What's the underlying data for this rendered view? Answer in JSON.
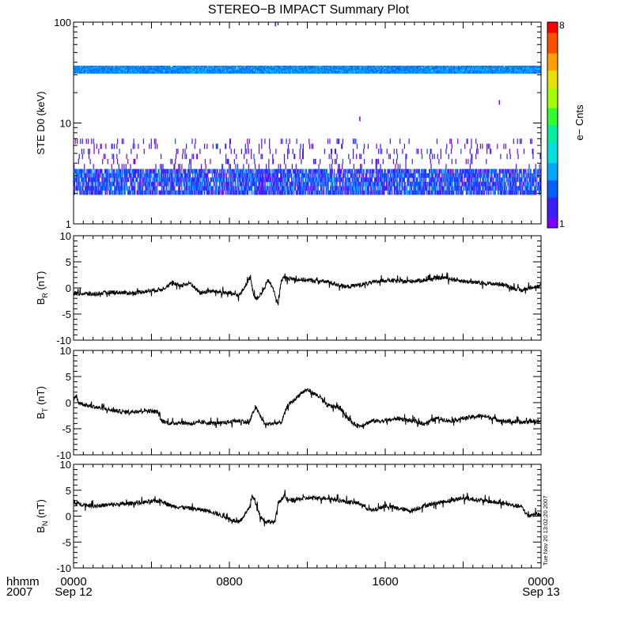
{
  "title": "STEREO−B IMPACT Summary Plot",
  "footer": {
    "label_line1": "hhmm",
    "label_line2": "2007",
    "ticks": [
      {
        "t": 0,
        "line1": "0000",
        "line2": "Sep 12"
      },
      {
        "t": 480,
        "line1": "0800",
        "line2": ""
      },
      {
        "t": 960,
        "line1": "1600",
        "line2": ""
      },
      {
        "t": 1440,
        "line1": "0000",
        "line2": "Sep 13"
      }
    ],
    "timestamp": "Tue Nov 20 13:02:20 2007"
  },
  "colorbar": {
    "label": "e− Cnts",
    "min_label": "1",
    "max_label": "8",
    "colors": [
      "#7f00ff",
      "#3a20ff",
      "#0060ff",
      "#00a8ff",
      "#00e0e0",
      "#00f0a0",
      "#30ff30",
      "#a0ff00",
      "#e8e000",
      "#ffa000",
      "#ff5000",
      "#ff0000"
    ]
  },
  "chart_data": [
    {
      "type": "heatmap",
      "ylabel": "STE D0 (keV)",
      "yscale": "log",
      "ylim": [
        1,
        100
      ],
      "yticks": [
        1,
        10,
        100
      ],
      "xlim": [
        0,
        1440
      ],
      "bands": [
        {
          "ylow": 1.95,
          "yhigh": 3.5,
          "fill": 0.75,
          "level_min": 1,
          "level_max": 3
        },
        {
          "ylow": 3.5,
          "yhigh": 7.0,
          "fill": 0.08,
          "level_min": 1,
          "level_max": 2
        },
        {
          "ylow": 31.0,
          "yhigh": 37.0,
          "fill": 0.96,
          "level_min": 2,
          "level_max": 3.3
        }
      ],
      "isolated_points": [
        {
          "x": 620,
          "y": 96,
          "level": 1
        },
        {
          "x": 880,
          "y": 11,
          "level": 1
        },
        {
          "x": 1310,
          "y": 16,
          "level": 1
        }
      ]
    },
    {
      "type": "line",
      "ylabel": "B",
      "ylabel_sub": "R",
      "ylabel_unit": "(nT)",
      "ylim": [
        -10,
        10
      ],
      "yticks": [
        -10,
        -5,
        0,
        5,
        10
      ],
      "xlim": [
        0,
        1440
      ],
      "x": [
        0,
        60,
        120,
        180,
        240,
        270,
        300,
        330,
        360,
        390,
        420,
        450,
        480,
        510,
        530,
        545,
        555,
        565,
        580,
        600,
        615,
        630,
        640,
        650,
        660,
        720,
        780,
        840,
        900,
        960,
        1020,
        1080,
        1140,
        1200,
        1260,
        1320,
        1380,
        1410,
        1440
      ],
      "y": [
        -1,
        -1.2,
        -0.8,
        -1,
        -0.5,
        -0.3,
        0.8,
        0.5,
        0.9,
        -1,
        -0.6,
        -0.8,
        -1,
        -1.5,
        0.5,
        2.2,
        -1.5,
        -2,
        -1,
        1.5,
        -0.2,
        -3.2,
        1.5,
        2,
        1.8,
        1.5,
        1.2,
        0.2,
        0.8,
        1.5,
        1.2,
        1.5,
        2,
        1.3,
        0.9,
        0.7,
        -0.5,
        0.2,
        0.3
      ],
      "noise": 0.4
    },
    {
      "type": "line",
      "ylabel": "B",
      "ylabel_sub": "T",
      "ylabel_unit": "(nT)",
      "ylim": [
        -10,
        10
      ],
      "yticks": [
        -10,
        -5,
        0,
        5,
        10
      ],
      "xlim": [
        0,
        1440
      ],
      "x": [
        0,
        8,
        15,
        40,
        80,
        120,
        160,
        220,
        260,
        270,
        300,
        330,
        360,
        400,
        450,
        500,
        520,
        540,
        560,
        590,
        610,
        640,
        660,
        680,
        700,
        720,
        760,
        780,
        820,
        860,
        880,
        920,
        960,
        1000,
        1040,
        1080,
        1120,
        1160,
        1200,
        1260,
        1320,
        1380,
        1410,
        1440
      ],
      "y": [
        0.3,
        1.5,
        0,
        -0.5,
        -1,
        -1.5,
        -1.8,
        -1.5,
        -1.8,
        -3.5,
        -4,
        -3.8,
        -4,
        -3.8,
        -4,
        -3.5,
        -3.5,
        -4,
        -0.8,
        -4.2,
        -4,
        -3.8,
        -0.5,
        0.5,
        1.8,
        2.5,
        1,
        -0.5,
        -1,
        -4,
        -4.5,
        -3.5,
        -3.5,
        -3,
        -3.5,
        -4,
        -3,
        -3.5,
        -3,
        -2.5,
        -3.5,
        -3.8,
        -3.5,
        -3.7
      ],
      "noise": 0.4
    },
    {
      "type": "line",
      "ylabel": "B",
      "ylabel_sub": "N",
      "ylabel_unit": "(nT)",
      "ylim": [
        -10,
        10
      ],
      "yticks": [
        -10,
        -5,
        0,
        5,
        10
      ],
      "xlim": [
        0,
        1440
      ],
      "x": [
        0,
        60,
        120,
        180,
        240,
        270,
        300,
        360,
        420,
        480,
        510,
        540,
        550,
        560,
        575,
        590,
        600,
        620,
        630,
        650,
        660,
        720,
        780,
        840,
        880,
        920,
        960,
        1000,
        1040,
        1080,
        1140,
        1200,
        1260,
        1320,
        1380,
        1400,
        1420,
        1440
      ],
      "y": [
        2.5,
        2,
        2.2,
        2.5,
        2.8,
        3,
        2,
        1.5,
        1,
        -0.5,
        -1.3,
        1.5,
        3.8,
        3,
        0,
        -1,
        -1,
        -1.2,
        2.5,
        4,
        3,
        3.5,
        3.5,
        2.8,
        2.5,
        1,
        2,
        1.5,
        1,
        2,
        2.8,
        3.5,
        3,
        2.5,
        1.8,
        0,
        0.5,
        0.2
      ],
      "noise": 0.4
    }
  ]
}
